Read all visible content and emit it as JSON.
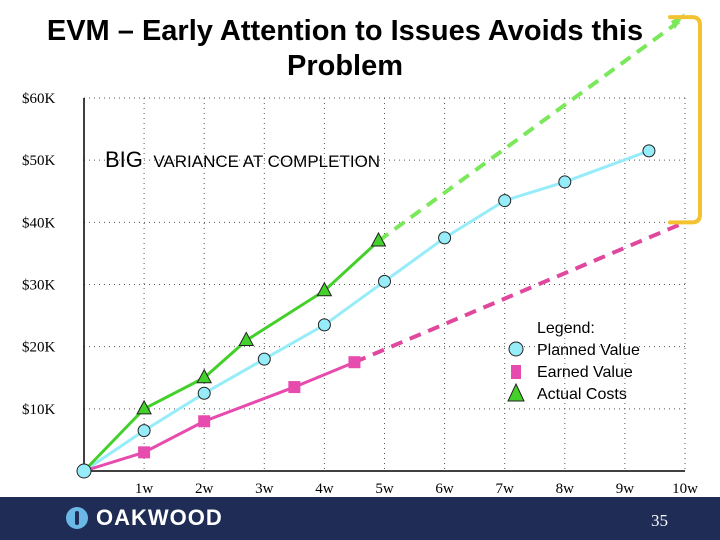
{
  "title": "EVM – Early Attention to Issues Avoids this Problem",
  "footer": {
    "logo_text": "OAKWOOD",
    "page_number": "35"
  },
  "chart_data": {
    "type": "line",
    "title": "EVM – Early Attention to Issues Avoids this Problem",
    "xlabel": "",
    "ylabel": "",
    "x_categories": [
      "1w",
      "2w",
      "3w",
      "4w",
      "5w",
      "6w",
      "7w",
      "8w",
      "9w",
      "10w"
    ],
    "y_tick_labels": [
      "$10K",
      "$20K",
      "$30K",
      "$40K",
      "$50K",
      "$60K"
    ],
    "y_tick_values": [
      10,
      20,
      30,
      40,
      50,
      60
    ],
    "xlim": [
      0,
      10
    ],
    "ylim": [
      0,
      62
    ],
    "grid": true,
    "series": [
      {
        "name": "Planned Value",
        "color": "#96ecf8",
        "marker": "circle",
        "x": [
          0,
          1,
          2,
          3,
          4,
          5,
          6,
          7,
          8,
          9.4
        ],
        "y": [
          0,
          6.5,
          12.5,
          18,
          23.5,
          30.5,
          37.5,
          43.5,
          46.5,
          51.5
        ]
      },
      {
        "name": "Earned Value",
        "color": "#e64bad",
        "marker": "square",
        "x": [
          0,
          1,
          2,
          3.5,
          4.5
        ],
        "y": [
          0,
          3,
          8,
          13.5,
          17.5
        ]
      },
      {
        "name": "Actual Costs",
        "color": "#44d02a",
        "marker": "triangle",
        "x": [
          0,
          1,
          2,
          2.7,
          4,
          4.9
        ],
        "y": [
          0,
          10,
          15,
          21,
          29,
          37
        ]
      }
    ],
    "projections": [
      {
        "of": "Actual Costs",
        "color": "#7ae85a",
        "from": [
          4.9,
          37
        ],
        "to": [
          10,
          73
        ]
      },
      {
        "of": "Earned Value",
        "color": "#e0489e",
        "from": [
          4.5,
          17.5
        ],
        "to": [
          10,
          40
        ]
      }
    ],
    "variance_bracket": {
      "color": "#f2c230",
      "from_y": 73,
      "to_y": 40
    },
    "annotation": {
      "big": "BIG",
      "rest": "VARIANCE AT COMPLETION"
    },
    "legend": {
      "title": "Legend:",
      "entries": [
        "Planned Value",
        "Earned Value",
        "Actual Costs"
      ],
      "position": "right"
    }
  }
}
